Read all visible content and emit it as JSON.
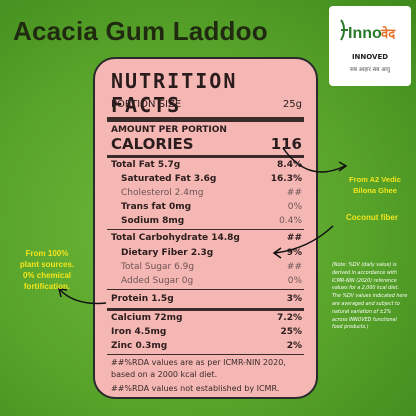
{
  "product": {
    "title": "Acacia Gum Laddoo"
  },
  "logo": {
    "brand": "Inno",
    "brand_mark": "वेद",
    "sub": "INNOVED",
    "tagline": "सब आहार सब आयु"
  },
  "facts": {
    "heading": "NUTRITION FACTS",
    "serving_label": "PORTION SIZE",
    "serving_value": "25g",
    "amount_label": "AMOUNT PER PORTION",
    "calories_label": "CALORIES",
    "calories_value": "116",
    "rows": [
      {
        "label": "Total Fat 5.7g",
        "value": "8.4%"
      },
      {
        "label": "Saturated Fat 3.6g",
        "value": "16.3%"
      },
      {
        "label": "Cholesterol 2.4mg",
        "value": "##"
      },
      {
        "label": "Trans fat 0mg",
        "value": "0%"
      },
      {
        "label": "Sodium 8mg",
        "value": "0.4%"
      },
      {
        "label": "Total Carbohydrate 14.8g",
        "value": "##"
      },
      {
        "label": "Dietary Fiber 2.3g",
        "value": "9%"
      },
      {
        "label": "Total Sugar 6.9g",
        "value": "##"
      },
      {
        "label": "Added Sugar 0g",
        "value": "0%"
      },
      {
        "label": "Protein 1.5g",
        "value": "3%"
      },
      {
        "label": "Calcium 72mg",
        "value": "7.2%"
      },
      {
        "label": "Iron 4.5mg",
        "value": "25%"
      },
      {
        "label": "Zinc 0.3mg",
        "value": "2%"
      }
    ],
    "footnote1": "##%RDA values are as per ICMR-NIN 2020, based on a 2000 kcal diet.",
    "footnote2": "##%RDA values not established by ICMR."
  },
  "callouts": {
    "ghee_line1": "From A2 Vedic",
    "ghee_line2": "Bilona Ghee",
    "fiber": "Coconut fiber",
    "plant_line1": "From 100%",
    "plant_line2": "plant sources.",
    "plant_line3": "0% chemical",
    "plant_line4": "fortification."
  },
  "note": "(Note: %DV (daily value) is derived in accordance with ICMR-NIN (2020) reference values for a 2,000 kcal diet. The %DV values indicated here are averaged and subject to natural variation of ±2% across INNOVED functional food products.)",
  "colors": {
    "panel": "#f4b7b3",
    "callout": "#f3e51d",
    "background": "#58a32a"
  }
}
